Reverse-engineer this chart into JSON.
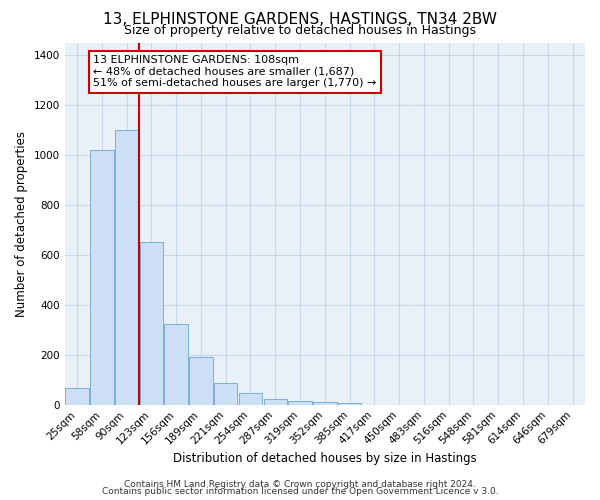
{
  "title": "13, ELPHINSTONE GARDENS, HASTINGS, TN34 2BW",
  "subtitle": "Size of property relative to detached houses in Hastings",
  "xlabel": "Distribution of detached houses by size in Hastings",
  "ylabel": "Number of detached properties",
  "bar_labels": [
    "25sqm",
    "58sqm",
    "90sqm",
    "123sqm",
    "156sqm",
    "189sqm",
    "221sqm",
    "254sqm",
    "287sqm",
    "319sqm",
    "352sqm",
    "385sqm",
    "417sqm",
    "450sqm",
    "483sqm",
    "516sqm",
    "548sqm",
    "581sqm",
    "614sqm",
    "646sqm",
    "679sqm"
  ],
  "bar_values": [
    65,
    1020,
    1100,
    650,
    325,
    190,
    85,
    45,
    22,
    16,
    10,
    5,
    0,
    0,
    0,
    0,
    0,
    0,
    0,
    0,
    0
  ],
  "bar_color": "#ccdff5",
  "bar_edge_color": "#7aafd4",
  "vline_color": "#cc0000",
  "ylim": [
    0,
    1450
  ],
  "yticks": [
    0,
    200,
    400,
    600,
    800,
    1000,
    1200,
    1400
  ],
  "annotation_box_text": "13 ELPHINSTONE GARDENS: 108sqm\n← 48% of detached houses are smaller (1,687)\n51% of semi-detached houses are larger (1,770) →",
  "annotation_box_color": "#cc0000",
  "footnote1": "Contains HM Land Registry data © Crown copyright and database right 2024.",
  "footnote2": "Contains public sector information licensed under the Open Government Licence v 3.0.",
  "bg_color": "#ffffff",
  "plot_bg_color": "#e8f0f8",
  "grid_color": "#c8d8e8",
  "title_fontsize": 11,
  "subtitle_fontsize": 9,
  "axis_label_fontsize": 8.5,
  "tick_fontsize": 7.5,
  "annotation_fontsize": 8,
  "footnote_fontsize": 6.5
}
